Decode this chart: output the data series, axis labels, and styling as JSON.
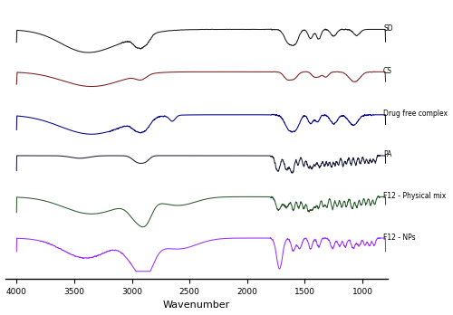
{
  "title": "",
  "xlabel": "Wavenumber",
  "x_ticks": [
    4000,
    3500,
    3000,
    2500,
    2000,
    1500,
    1000
  ],
  "labels": [
    "SD",
    "CS",
    "Drug free complex",
    "PA",
    "F12 - Physical mix",
    "F12 - NPs"
  ],
  "colors": [
    "#1a1a1a",
    "#7a1a1a",
    "#00008B",
    "#1a1a3a",
    "#2d5a2d",
    "#9B30FF"
  ],
  "offsets": [
    5.2,
    4.1,
    3.0,
    1.9,
    0.85,
    -0.25
  ],
  "background_color": "#ffffff"
}
